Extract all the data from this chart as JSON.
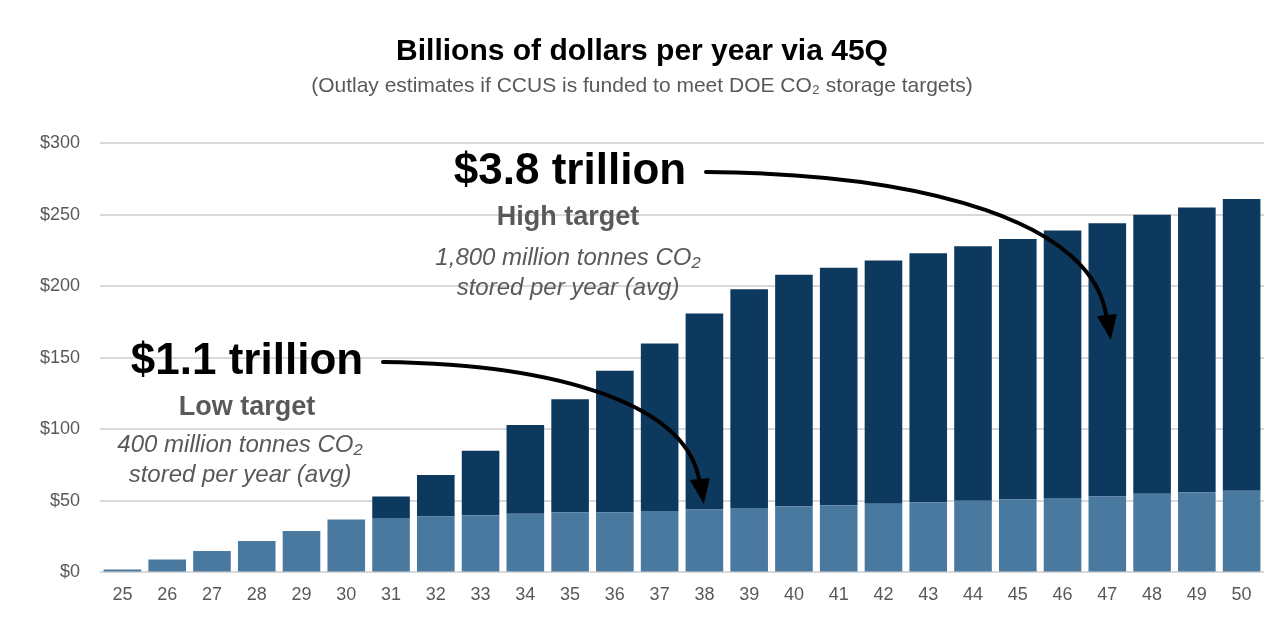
{
  "chart_data": {
    "type": "bar",
    "title": "Billions of dollars per year via 45Q",
    "subtitle": "(Outlay estimates if CCUS is funded to meet DOE CO₂ storage targets)",
    "categories": [
      "25",
      "26",
      "27",
      "28",
      "29",
      "30",
      "31",
      "32",
      "33",
      "34",
      "35",
      "36",
      "37",
      "38",
      "39",
      "40",
      "41",
      "42",
      "43",
      "44",
      "45",
      "46",
      "47",
      "48",
      "49",
      "50"
    ],
    "series": [
      {
        "color": "#4a79a0",
        "values": [
          2,
          9,
          15,
          22,
          29,
          37,
          38,
          39,
          40,
          41,
          42,
          42,
          43,
          44,
          45,
          46,
          47,
          48,
          49,
          50,
          51,
          52,
          53,
          55,
          56,
          57
        ]
      },
      {
        "color": "#0e395e",
        "values": [
          null,
          null,
          null,
          null,
          null,
          null,
          15,
          29,
          45,
          62,
          79,
          99,
          117,
          137,
          153,
          162,
          166,
          170,
          174,
          178,
          182,
          187,
          191,
          195,
          199,
          204
        ]
      }
    ],
    "stacked": true,
    "ylim": [
      0,
      300
    ],
    "yticks": [
      {
        "value": 0,
        "label": "$0"
      },
      {
        "value": 50,
        "label": "$50"
      },
      {
        "value": 100,
        "label": "$100"
      },
      {
        "value": 150,
        "label": "$150"
      },
      {
        "value": 200,
        "label": "$200"
      },
      {
        "value": 250,
        "label": "$250"
      },
      {
        "value": 300,
        "label": "$300"
      }
    ],
    "grid": "y",
    "legend": false,
    "annotations": [
      "$3.8 trillion",
      "High target",
      "1,800 million tonnes CO₂ stored per year (avg)",
      "$1.1 trillion",
      "Low target",
      "400 million tonnes CO₂ stored per year (avg)"
    ]
  }
}
